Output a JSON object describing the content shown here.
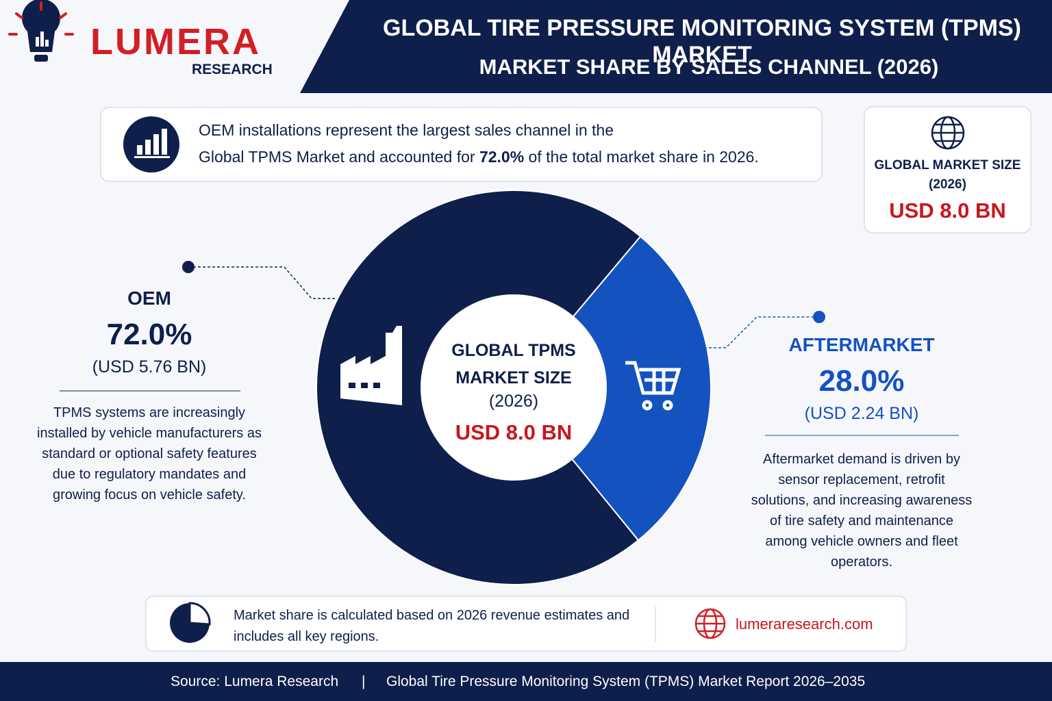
{
  "brand": {
    "name": "LUMERA",
    "sub": "RESEARCH"
  },
  "header": {
    "title": "GLOBAL TIRE PRESSURE MONITORING SYSTEM (TPMS) MARKET",
    "subtitle": "MARKET SHARE BY SALES CHANNEL (2026)"
  },
  "callout": {
    "line1": "OEM installations represent the largest sales channel in the",
    "line2_pre": "Global TPMS Market and accounted for ",
    "line2_highlight": "72.0%",
    "line2_post": " of the total market share in 2026."
  },
  "market_size_box": {
    "label": "GLOBAL MARKET SIZE",
    "year": "(2026)",
    "value": "USD 8.0 BN"
  },
  "chart_data": {
    "type": "pie",
    "categories": [
      "OEM",
      "AFTERMARKET"
    ],
    "values": [
      72.0,
      28.0
    ],
    "value_labels": [
      "72.0%",
      "28.0%"
    ],
    "colors": [
      "#0f1f4b",
      "#1452c0"
    ],
    "amounts": [
      "(USD 5.76 BN)",
      "(USD 2.24 BN)"
    ],
    "descriptions": [
      "TPMS systems are increasingly installed by vehicle manufacturers as standard or optional safety features due to regulatory mandates and growing focus on vehicle safety.",
      "Aftermarket demand is driven by sensor replacement, retrofit solutions, and increasing awareness of tire safety and maintenance among vehicle owners and fleet operators."
    ],
    "center_label": "GLOBAL TPMS MARKET SIZE",
    "center_year": "(2026)",
    "center_value": "USD 8.0 BN"
  },
  "note": {
    "text": "Market share is calculated based on 2026 revenue estimates and includes all key regions.",
    "website": "lumeraresearch.com"
  },
  "footer": {
    "source": "Source: Lumera Research",
    "separator": "|",
    "report": "Global Tire Pressure Monitoring System (TPMS) Market Report 2026–2035"
  }
}
